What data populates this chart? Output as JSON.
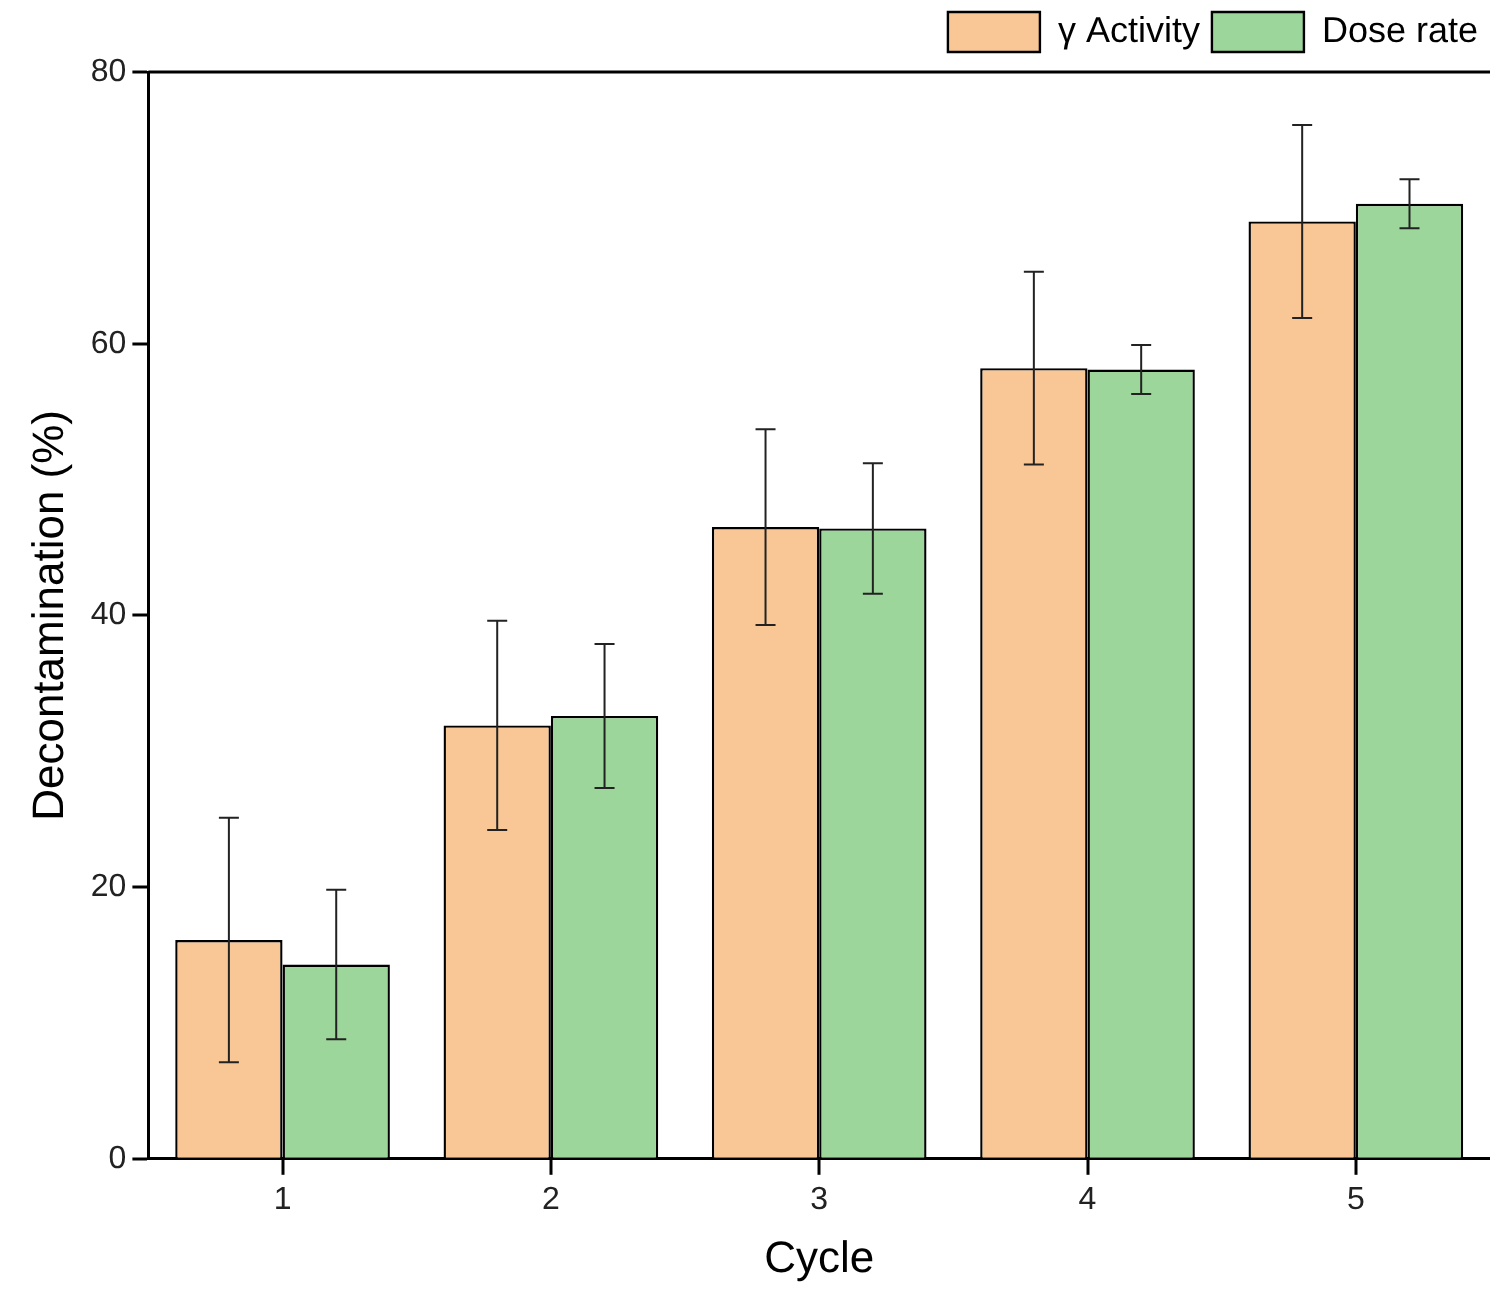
{
  "chart_data": {
    "type": "bar",
    "xlabel": "Cycle",
    "ylabel": "Decontamination (%)",
    "categories": [
      "1",
      "2",
      "3",
      "4",
      "5"
    ],
    "series": [
      {
        "name": "γ Activity",
        "color": "#f9c796",
        "values": [
          16.1,
          31.9,
          46.5,
          58.2,
          69.0
        ],
        "errors": [
          9.0,
          7.7,
          7.2,
          7.1,
          7.1
        ]
      },
      {
        "name": "Dose rate",
        "color": "#9dd69b",
        "values": [
          14.3,
          32.6,
          46.4,
          58.1,
          70.3
        ],
        "errors": [
          5.5,
          5.3,
          4.8,
          1.8,
          1.8
        ]
      }
    ],
    "ylim": [
      0,
      80
    ],
    "yticks": [
      0,
      20,
      40,
      60,
      80
    ],
    "grid": false,
    "legend": "top right"
  }
}
